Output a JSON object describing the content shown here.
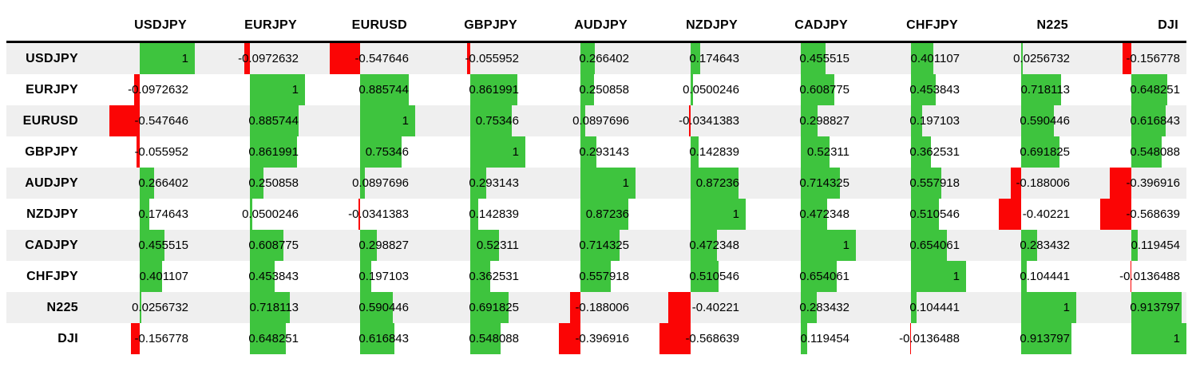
{
  "chart_data": {
    "type": "table",
    "subtype": "correlation-matrix-with-data-bars",
    "title": "",
    "columns": [
      "USDJPY",
      "EURJPY",
      "EURUSD",
      "GBPJPY",
      "AUDJPY",
      "NZDJPY",
      "CADJPY",
      "CHFJPY",
      "N225",
      "DJI"
    ],
    "rows": [
      "USDJPY",
      "EURJPY",
      "EURUSD",
      "GBPJPY",
      "AUDJPY",
      "NZDJPY",
      "CADJPY",
      "CHFJPY",
      "N225",
      "DJI"
    ],
    "values": [
      [
        "1",
        "-0.0972632",
        "-0.547646",
        "-0.055952",
        "0.266402",
        "0.174643",
        "0.455515",
        "0.401107",
        "0.0256732",
        "-0.156778"
      ],
      [
        "-0.0972632",
        "1",
        "0.885744",
        "0.861991",
        "0.250858",
        "0.0500246",
        "0.608775",
        "0.453843",
        "0.718113",
        "0.648251"
      ],
      [
        "-0.547646",
        "0.885744",
        "1",
        "0.75346",
        "0.0897696",
        "-0.0341383",
        "0.298827",
        "0.197103",
        "0.590446",
        "0.616843"
      ],
      [
        "-0.055952",
        "0.861991",
        "0.75346",
        "1",
        "0.293143",
        "0.142839",
        "0.52311",
        "0.362531",
        "0.691825",
        "0.548088"
      ],
      [
        "0.266402",
        "0.250858",
        "0.0897696",
        "0.293143",
        "1",
        "0.87236",
        "0.714325",
        "0.557918",
        "-0.188006",
        "-0.396916"
      ],
      [
        "0.174643",
        "0.0500246",
        "-0.0341383",
        "0.142839",
        "0.87236",
        "1",
        "0.472348",
        "0.510546",
        "-0.40221",
        "-0.568639"
      ],
      [
        "0.455515",
        "0.608775",
        "0.298827",
        "0.52311",
        "0.714325",
        "0.472348",
        "1",
        "0.654061",
        "0.283432",
        "0.119454"
      ],
      [
        "0.401107",
        "0.453843",
        "0.197103",
        "0.362531",
        "0.557918",
        "0.510546",
        "0.654061",
        "1",
        "0.104441",
        "-0.0136488"
      ],
      [
        "0.0256732",
        "0.718113",
        "0.590446",
        "0.691825",
        "-0.188006",
        "-0.40221",
        "0.283432",
        "0.104441",
        "1",
        "0.913797"
      ],
      [
        "-0.156778",
        "0.648251",
        "0.616843",
        "0.548088",
        "-0.396916",
        "-0.568639",
        "0.119454",
        "-0.0136488",
        "0.913797",
        "1"
      ]
    ],
    "bar_axis": "cell-center",
    "bar_scale_note": "bar length = |value| * half cell width; positive bars extend right in green, negative bars extend left in red",
    "positive_bar_color": "#3EC43E",
    "negative_bar_color": "#FB0505",
    "stripe_color": "#EFEFEF",
    "header_border_color": "#000000",
    "text_color": "#000000"
  }
}
